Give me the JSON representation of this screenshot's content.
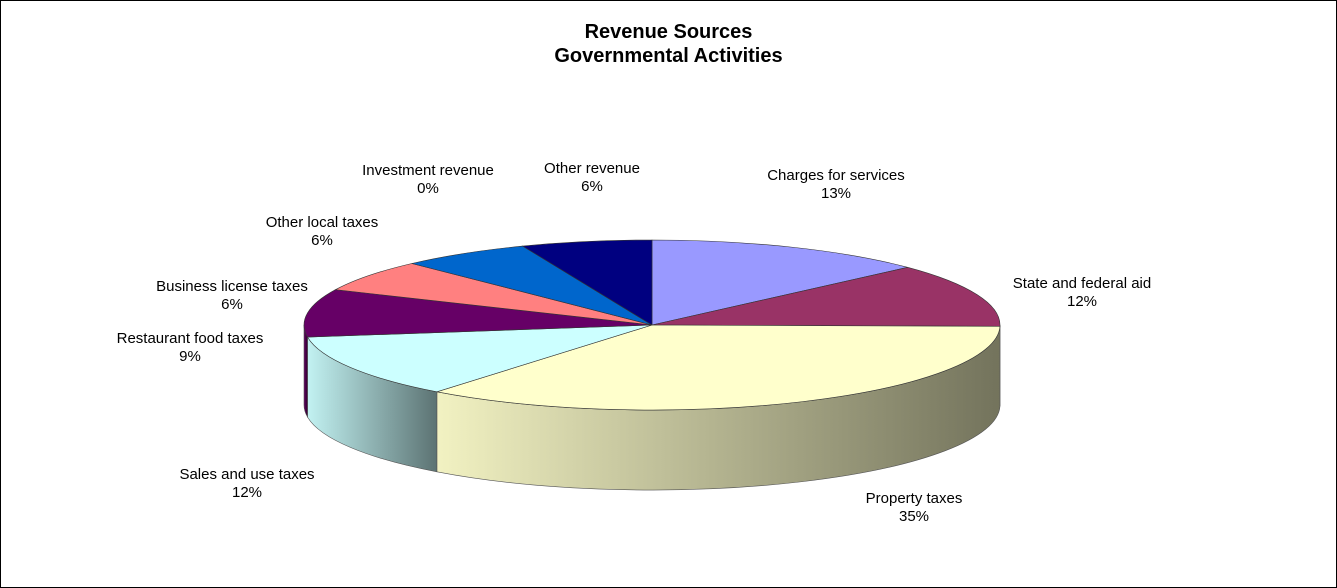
{
  "chart_data": {
    "type": "pie",
    "title": [
      "Revenue Sources",
      "Governmental Activities"
    ],
    "three_d": true,
    "legend": "none",
    "slices": [
      {
        "label": "Charges for services",
        "percent_label": "13%",
        "value": 13,
        "color": "#9999FF"
      },
      {
        "label": "State and federal aid",
        "percent_label": "12%",
        "value": 12,
        "color": "#993366"
      },
      {
        "label": "Property taxes",
        "percent_label": "35%",
        "value": 35,
        "color": "#FFFFCC"
      },
      {
        "label": "Sales and use taxes",
        "percent_label": "12%",
        "value": 12,
        "color": "#CCFFFF"
      },
      {
        "label": "Restaurant food taxes",
        "percent_label": "9%",
        "value": 9,
        "color": "#660066"
      },
      {
        "label": "Business license taxes",
        "percent_label": "6%",
        "value": 6,
        "color": "#FF8080"
      },
      {
        "label": "Other local taxes",
        "percent_label": "6%",
        "value": 6,
        "color": "#0066CC"
      },
      {
        "label": "Investment revenue",
        "percent_label": "0%",
        "value": 0,
        "color": "#CCCCFF"
      },
      {
        "label": "Other revenue",
        "percent_label": "6%",
        "value": 6,
        "color": "#000080"
      }
    ]
  }
}
